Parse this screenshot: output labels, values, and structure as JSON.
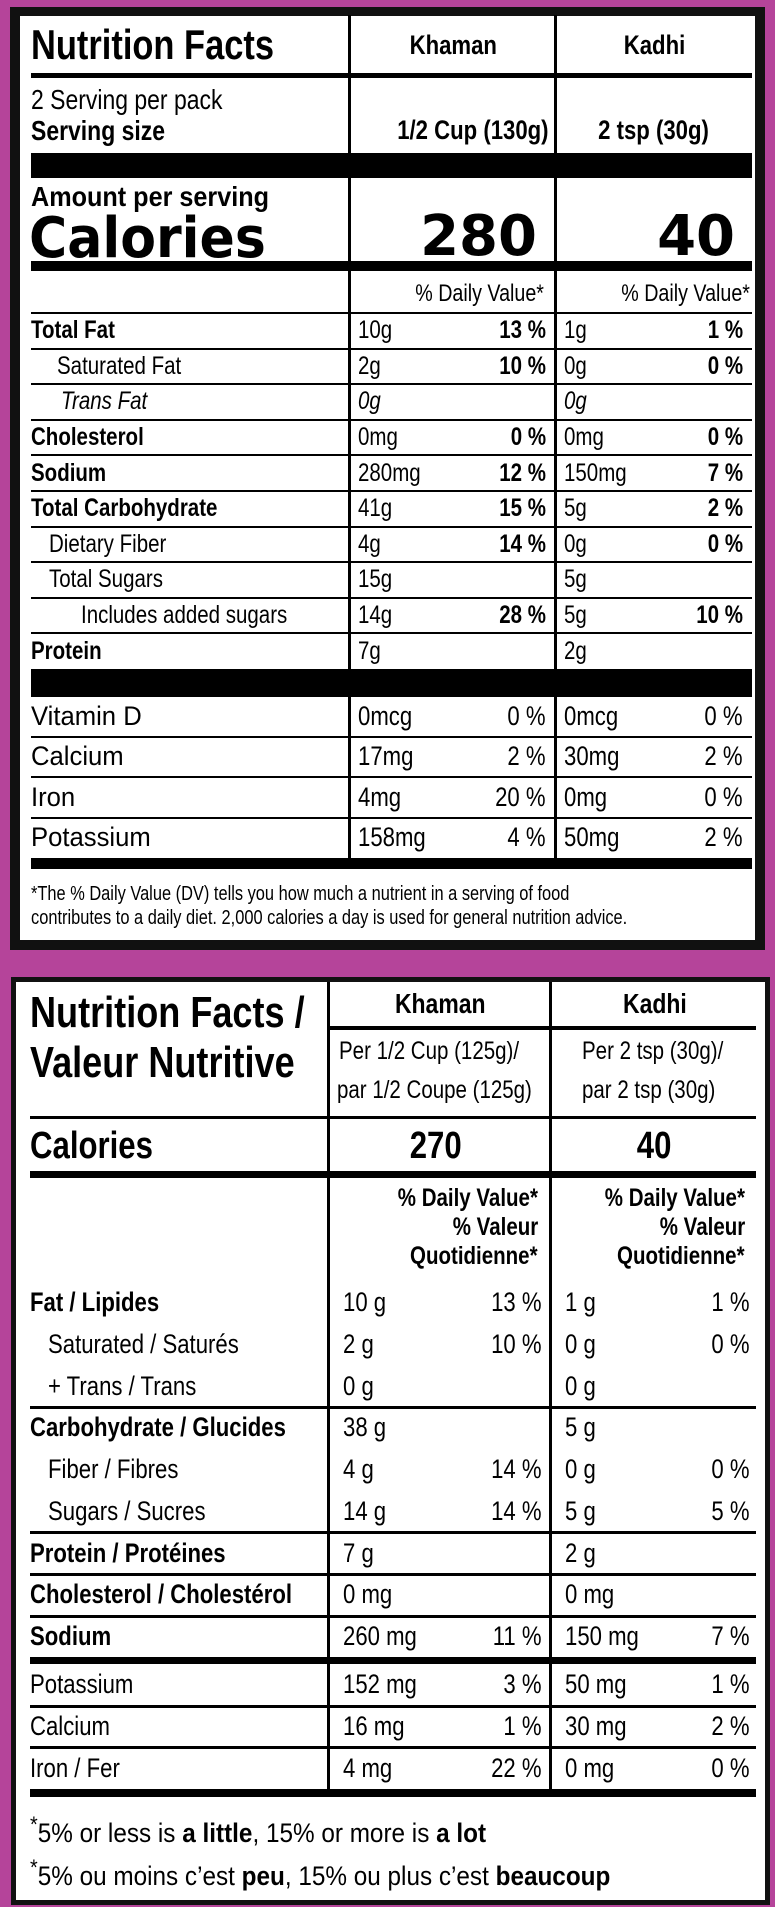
{
  "colors": {
    "background": "#b5449a",
    "ink": "#000000",
    "panel": "#ffffff"
  },
  "us_label": {
    "title": "Nutrition Facts",
    "columns": [
      "Khaman",
      "Kadhi"
    ],
    "servings_per_pack": "2 Serving per pack",
    "serving_size_label": "Serving size",
    "serving_sizes": [
      "1/2 Cup (130g)",
      "2 tsp (30g)"
    ],
    "amount_per_serving": "Amount per serving",
    "calories_label": "Calories",
    "calories": [
      "280",
      "40"
    ],
    "dv_header": [
      "% Daily Value*",
      "% Daily Value*"
    ],
    "nutrients": [
      {
        "label": "Total Fat",
        "style": "bold",
        "values": [
          [
            "10g",
            "13 %"
          ],
          [
            "1g",
            "1 %"
          ]
        ]
      },
      {
        "label": "Saturated Fat",
        "style": "sub",
        "values": [
          [
            "2g",
            "10 %"
          ],
          [
            "0g",
            "0 %"
          ]
        ]
      },
      {
        "label": "Trans Fat",
        "style": "italic",
        "values": [
          [
            "0g",
            ""
          ],
          [
            "0g",
            ""
          ]
        ]
      },
      {
        "label": "Cholesterol",
        "style": "bold",
        "values": [
          [
            "0mg",
            "0 %"
          ],
          [
            "0mg",
            "0 %"
          ]
        ]
      },
      {
        "label": "Sodium",
        "style": "bold",
        "values": [
          [
            "280mg",
            "12 %"
          ],
          [
            "150mg",
            "7 %"
          ]
        ]
      },
      {
        "label": "Total Carbohydrate",
        "style": "bold",
        "values": [
          [
            "41g",
            "15 %"
          ],
          [
            "5g",
            "2 %"
          ]
        ]
      },
      {
        "label": "Dietary Fiber",
        "style": "sub",
        "values": [
          [
            "4g",
            "14 %"
          ],
          [
            "0g",
            "0 %"
          ]
        ]
      },
      {
        "label": "Total Sugars",
        "style": "sub",
        "values": [
          [
            "15g",
            ""
          ],
          [
            "5g",
            ""
          ]
        ]
      },
      {
        "label": "Includes added sugars",
        "style": "subsub",
        "values": [
          [
            "14g",
            "28 %"
          ],
          [
            "5g",
            "10 %"
          ]
        ]
      },
      {
        "label": "Protein",
        "style": "bold",
        "values": [
          [
            "7g",
            ""
          ],
          [
            "2g",
            ""
          ]
        ]
      }
    ],
    "vitamins": [
      {
        "label": "Vitamin D",
        "values": [
          [
            "0mcg",
            "0 %"
          ],
          [
            "0mcg",
            "0 %"
          ]
        ]
      },
      {
        "label": "Calcium",
        "values": [
          [
            "17mg",
            "2 %"
          ],
          [
            "30mg",
            "2 %"
          ]
        ]
      },
      {
        "label": "Iron",
        "values": [
          [
            "4mg",
            "20 %"
          ],
          [
            "0mg",
            "0 %"
          ]
        ]
      },
      {
        "label": "Potassium",
        "values": [
          [
            "158mg",
            "4 %"
          ],
          [
            "50mg",
            "2 %"
          ]
        ]
      }
    ],
    "footnote_lines": [
      "*The % Daily Value (DV) tells you how much a nutrient in a serving of food",
      "contributes to a daily diet. 2,000 calories a day is used for general nutrition advice."
    ]
  },
  "ca_label": {
    "title_lines": [
      "Nutrition Facts /",
      "Valeur Nutritive"
    ],
    "columns": [
      "Khaman",
      "Kadhi"
    ],
    "serving_lines": [
      [
        "Per 1/2 Cup  (125g)/",
        "par 1/2 Coupe (125g)"
      ],
      [
        "Per 2 tsp (30g)/",
        "par 2  tsp (30g)"
      ]
    ],
    "calories_label": "Calories",
    "calories": [
      "270",
      "40"
    ],
    "dv_header_lines": [
      "% Daily Value*",
      "% Valeur",
      "Quotidienne*"
    ],
    "nutrients": [
      {
        "label": "Fat / Lipides",
        "style": "bold",
        "values": [
          [
            "10 g",
            "13 %"
          ],
          [
            "1 g",
            "1 %"
          ]
        ]
      },
      {
        "label": "Saturated / Saturés",
        "style": "sub",
        "values": [
          [
            "2 g",
            "10 %"
          ],
          [
            "0 g",
            "0 %"
          ]
        ]
      },
      {
        "label": "+ Trans / Trans",
        "style": "sub",
        "values": [
          [
            "0 g",
            ""
          ],
          [
            "0 g",
            ""
          ]
        ]
      },
      {
        "label": "Carbohydrate / Glucides",
        "style": "bold",
        "values": [
          [
            "38 g",
            ""
          ],
          [
            "5 g",
            ""
          ]
        ]
      },
      {
        "label": "Fiber / Fibres",
        "style": "sub",
        "values": [
          [
            "4 g",
            "14 %"
          ],
          [
            "0 g",
            "0 %"
          ]
        ]
      },
      {
        "label": "Sugars / Sucres",
        "style": "sub",
        "values": [
          [
            "14 g",
            "14 %"
          ],
          [
            "5 g",
            "5 %"
          ]
        ]
      },
      {
        "label": "Protein / Protéines",
        "style": "bold",
        "values": [
          [
            "7 g",
            ""
          ],
          [
            "2 g",
            ""
          ]
        ]
      },
      {
        "label": "Cholesterol / Cholestérol",
        "style": "bold",
        "values": [
          [
            "0 mg",
            ""
          ],
          [
            "0 mg",
            ""
          ]
        ]
      },
      {
        "label": "Sodium",
        "style": "bold",
        "values": [
          [
            "260 mg",
            "11 %"
          ],
          [
            "150 mg",
            "7 %"
          ]
        ]
      }
    ],
    "minerals": [
      {
        "label": "Potassium",
        "values": [
          [
            "152 mg",
            "3 %"
          ],
          [
            "50 mg",
            "1 %"
          ]
        ]
      },
      {
        "label": "Calcium",
        "values": [
          [
            "16 mg",
            "1 %"
          ],
          [
            "30 mg",
            "2 %"
          ]
        ]
      },
      {
        "label": "Iron / Fer",
        "values": [
          [
            "4 mg",
            "22 %"
          ],
          [
            "0 mg",
            "0 %"
          ]
        ]
      }
    ],
    "footnotes": [
      {
        "star": "*",
        "parts": [
          "5% or less is ",
          "a little",
          ", 15% or more is ",
          "a lot"
        ]
      },
      {
        "star": "*",
        "parts": [
          "5% ou moins c’est ",
          "peu",
          ", 15% ou plus c’est ",
          "beaucoup"
        ]
      }
    ]
  }
}
